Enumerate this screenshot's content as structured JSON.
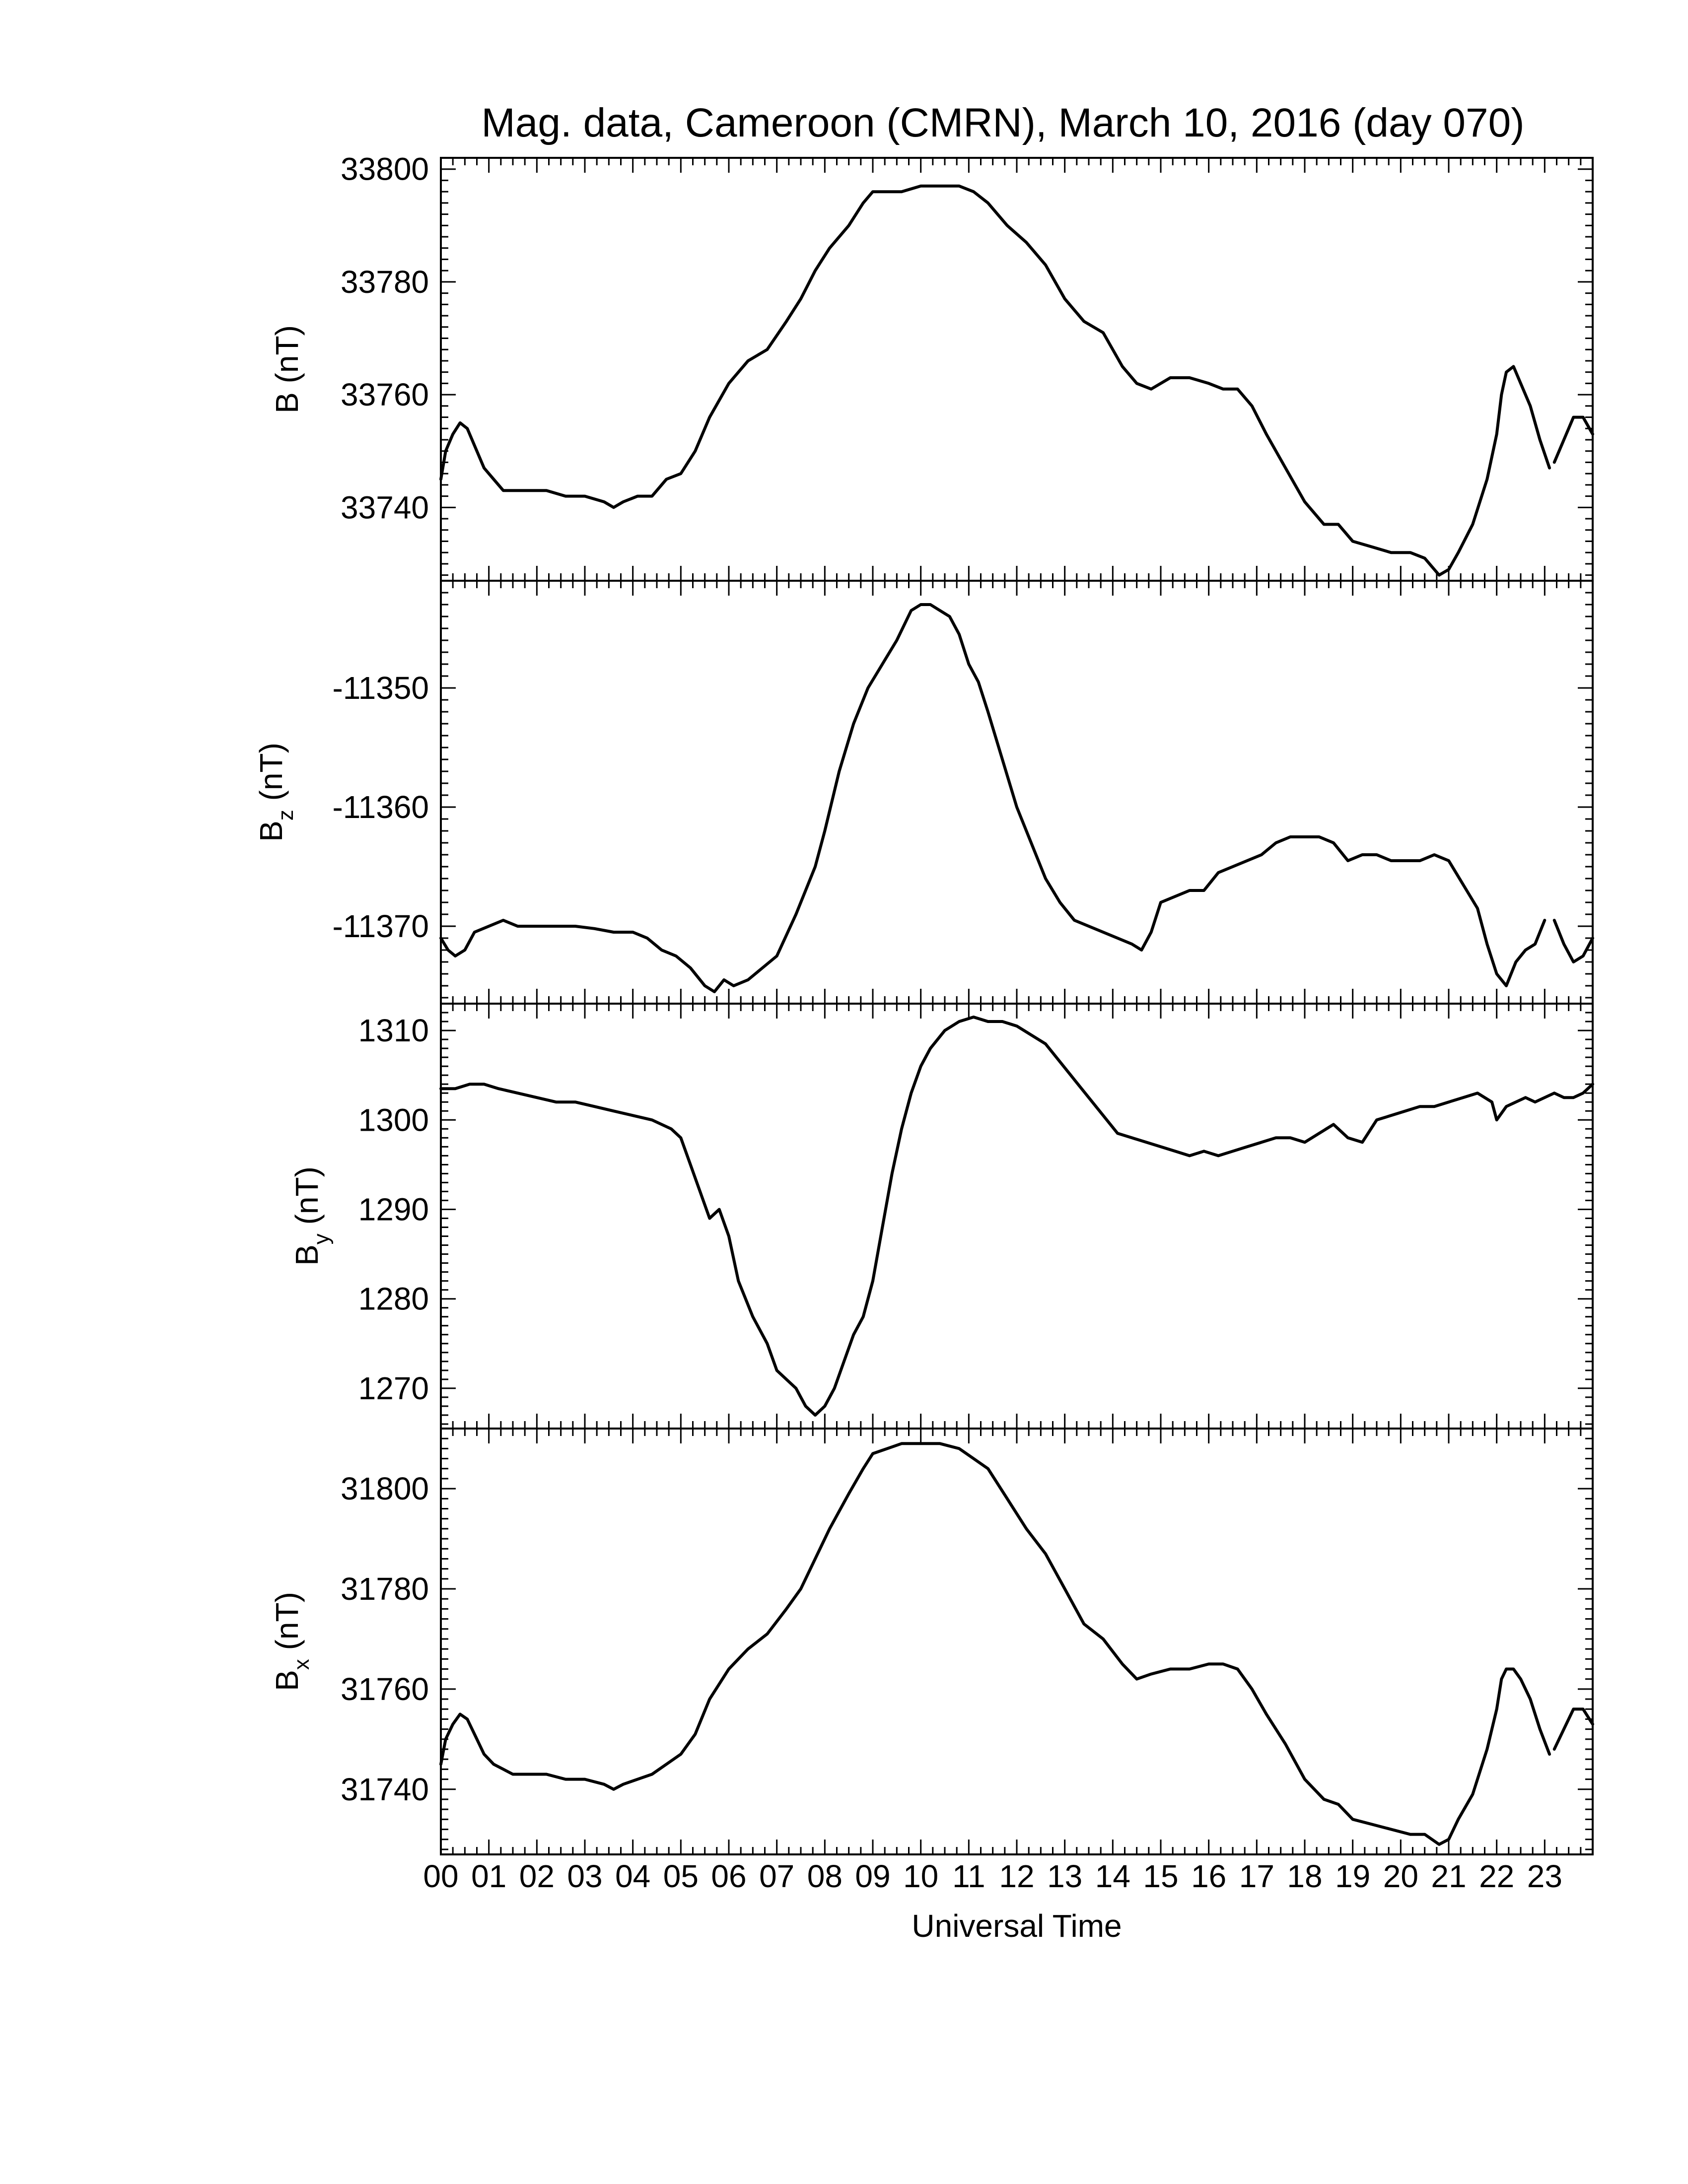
{
  "title": "Mag. data, Cameroon (CMRN), March 10, 2016 (day 070)",
  "xlabel": "Universal Time",
  "x_tick_labels": [
    "00",
    "01",
    "02",
    "03",
    "04",
    "05",
    "06",
    "07",
    "08",
    "09",
    "10",
    "11",
    "12",
    "13",
    "14",
    "15",
    "16",
    "17",
    "18",
    "19",
    "20",
    "21",
    "22",
    "23"
  ],
  "chart_data": [
    {
      "type": "line",
      "ylabel": "B (nT)",
      "ylabel_main": "B",
      "ylabel_sub": "",
      "ylabel_units": "(nT)",
      "xlim": [
        0,
        24
      ],
      "ylim": [
        33727,
        33802
      ],
      "yticks": [
        33740,
        33760,
        33780,
        33800
      ],
      "grid": false,
      "series": [
        {
          "x": [
            0.0,
            0.1,
            0.25,
            0.4,
            0.55,
            0.7,
            0.9,
            1.1,
            1.3,
            1.5,
            1.8,
            2.2,
            2.6,
            3.0,
            3.4,
            3.6,
            3.8,
            4.1,
            4.4,
            4.7,
            5.0,
            5.3,
            5.6,
            6.0,
            6.4,
            6.8,
            7.2,
            7.5,
            7.8,
            8.1,
            8.5,
            8.8,
            9.0,
            9.3,
            9.6,
            10.0,
            10.4,
            10.8,
            11.1,
            11.4,
            11.8,
            12.2,
            12.6,
            13.0,
            13.4,
            13.8,
            14.2,
            14.5,
            14.8,
            15.2,
            15.6,
            16.0,
            16.3,
            16.6,
            16.9,
            17.2,
            17.6,
            18.0,
            18.4,
            18.7,
            19.0,
            19.4,
            19.8,
            20.2,
            20.5,
            20.8,
            21.0,
            21.2,
            21.5,
            21.8,
            22.0,
            22.1,
            22.2,
            22.35,
            22.5,
            22.7,
            22.9,
            23.1
          ],
          "y": [
            33745,
            33750,
            33753,
            33755,
            33754,
            33751,
            33747,
            33745,
            33743,
            33743,
            33743,
            33743,
            33742,
            33742,
            33741,
            33740,
            33741,
            33742,
            33742,
            33745,
            33746,
            33750,
            33756,
            33762,
            33766,
            33768,
            33773,
            33777,
            33782,
            33786,
            33790,
            33794,
            33796,
            33796,
            33796,
            33797,
            33797,
            33797,
            33796,
            33794,
            33790,
            33787,
            33783,
            33777,
            33773,
            33771,
            33765,
            33762,
            33761,
            33763,
            33763,
            33762,
            33761,
            33761,
            33758,
            33753,
            33747,
            33741,
            33737,
            33737,
            33734,
            33733,
            33732,
            33732,
            33731,
            33728,
            33729,
            33732,
            33737,
            33745,
            33753,
            33760,
            33764,
            33765,
            33762,
            33758,
            33752,
            33747
          ]
        },
        {
          "x": [
            23.2,
            23.4,
            23.6,
            23.8,
            24.0
          ],
          "y": [
            33748,
            33752,
            33756,
            33756,
            33753
          ]
        }
      ]
    },
    {
      "type": "line",
      "ylabel": "Bz (nT)",
      "ylabel_main": "B",
      "ylabel_sub": "z",
      "ylabel_units": "(nT)",
      "xlim": [
        0,
        24
      ],
      "ylim": [
        -11376.5,
        -11341
      ],
      "yticks": [
        -11350,
        -11360,
        -11370
      ],
      "grid": false,
      "series": [
        {
          "x": [
            0.0,
            0.15,
            0.3,
            0.5,
            0.7,
            1.0,
            1.3,
            1.6,
            2.0,
            2.4,
            2.8,
            3.2,
            3.6,
            4.0,
            4.3,
            4.6,
            4.9,
            5.2,
            5.5,
            5.7,
            5.9,
            6.1,
            6.4,
            6.7,
            7.0,
            7.4,
            7.8,
            8.0,
            8.3,
            8.6,
            8.9,
            9.2,
            9.5,
            9.8,
            10.0,
            10.2,
            10.4,
            10.6,
            10.8,
            11.0,
            11.2,
            11.4,
            11.7,
            12.0,
            12.3,
            12.6,
            12.9,
            13.2,
            13.5,
            13.8,
            14.1,
            14.4,
            14.6,
            14.8,
            15.0,
            15.3,
            15.6,
            15.9,
            16.2,
            16.5,
            16.8,
            17.1,
            17.4,
            17.7,
            18.0,
            18.3,
            18.6,
            18.9,
            19.2,
            19.5,
            19.8,
            20.1,
            20.4,
            20.7,
            21.0,
            21.3,
            21.6,
            21.8,
            22.0,
            22.2,
            22.4,
            22.6,
            22.8,
            23.0
          ],
          "y": [
            -11371.0,
            -11372.0,
            -11372.5,
            -11372.0,
            -11370.5,
            -11370.0,
            -11369.5,
            -11370.0,
            -11370.0,
            -11370.0,
            -11370.0,
            -11370.2,
            -11370.5,
            -11370.5,
            -11371.0,
            -11372.0,
            -11372.5,
            -11373.5,
            -11375.0,
            -11375.5,
            -11374.5,
            -11375.0,
            -11374.5,
            -11373.5,
            -11372.5,
            -11369.0,
            -11365.0,
            -11362.0,
            -11357.0,
            -11353.0,
            -11350.0,
            -11348.0,
            -11346.0,
            -11343.5,
            -11343.0,
            -11343.0,
            -11343.5,
            -11344.0,
            -11345.5,
            -11348.0,
            -11349.5,
            -11352.0,
            -11356.0,
            -11360.0,
            -11363.0,
            -11366.0,
            -11368.0,
            -11369.5,
            -11370.0,
            -11370.5,
            -11371.0,
            -11371.5,
            -11372.0,
            -11370.5,
            -11368.0,
            -11367.5,
            -11367.0,
            -11367.0,
            -11365.5,
            -11365.0,
            -11364.5,
            -11364.0,
            -11363.0,
            -11362.5,
            -11362.5,
            -11362.5,
            -11363.0,
            -11364.5,
            -11364.0,
            -11364.0,
            -11364.5,
            -11364.5,
            -11364.5,
            -11364.0,
            -11364.5,
            -11366.5,
            -11368.5,
            -11371.5,
            -11374.0,
            -11375.0,
            -11373.0,
            -11372.0,
            -11371.5,
            -11369.5
          ]
        },
        {
          "x": [
            23.2,
            23.4,
            23.6,
            23.8,
            24.0
          ],
          "y": [
            -11369.5,
            -11371.5,
            -11373.0,
            -11372.5,
            -11371.0
          ]
        }
      ]
    },
    {
      "type": "line",
      "ylabel": "By (nT)",
      "ylabel_main": "B",
      "ylabel_sub": "y",
      "ylabel_units": "(nT)",
      "xlim": [
        0,
        24
      ],
      "ylim": [
        1265.5,
        1313
      ],
      "yticks": [
        1270,
        1280,
        1290,
        1300,
        1310
      ],
      "grid": false,
      "series": [
        {
          "x": [
            0.0,
            0.3,
            0.6,
            0.9,
            1.2,
            1.6,
            2.0,
            2.4,
            2.8,
            3.2,
            3.6,
            4.0,
            4.4,
            4.8,
            5.0,
            5.2,
            5.4,
            5.6,
            5.8,
            6.0,
            6.2,
            6.5,
            6.8,
            7.0,
            7.2,
            7.4,
            7.6,
            7.8,
            8.0,
            8.2,
            8.4,
            8.6,
            8.8,
            9.0,
            9.2,
            9.4,
            9.6,
            9.8,
            10.0,
            10.2,
            10.5,
            10.8,
            11.1,
            11.4,
            11.7,
            12.0,
            12.3,
            12.6,
            12.9,
            13.2,
            13.5,
            13.8,
            14.1,
            14.4,
            14.7,
            15.0,
            15.3,
            15.6,
            15.9,
            16.2,
            16.5,
            16.8,
            17.1,
            17.4,
            17.7,
            18.0,
            18.3,
            18.6,
            18.9,
            19.2,
            19.5,
            19.8,
            20.1,
            20.4,
            20.7,
            21.0,
            21.3,
            21.6,
            21.9,
            22.0,
            22.2,
            22.4,
            22.6,
            22.8,
            23.0,
            23.2,
            23.4,
            23.6,
            23.8,
            24.0
          ],
          "y": [
            1303.5,
            1303.5,
            1304.0,
            1304.0,
            1303.5,
            1303.0,
            1302.5,
            1302.0,
            1302.0,
            1301.5,
            1301.0,
            1300.5,
            1300.0,
            1299.0,
            1298.0,
            1295.0,
            1292.0,
            1289.0,
            1290.0,
            1287.0,
            1282.0,
            1278.0,
            1275.0,
            1272.0,
            1271.0,
            1270.0,
            1268.0,
            1267.0,
            1268.0,
            1270.0,
            1273.0,
            1276.0,
            1278.0,
            1282.0,
            1288.0,
            1294.0,
            1299.0,
            1303.0,
            1306.0,
            1308.0,
            1310.0,
            1311.0,
            1311.5,
            1311.0,
            1311.0,
            1310.5,
            1309.5,
            1308.5,
            1306.5,
            1304.5,
            1302.5,
            1300.5,
            1298.5,
            1298.0,
            1297.5,
            1297.0,
            1296.5,
            1296.0,
            1296.5,
            1296.0,
            1296.5,
            1297.0,
            1297.5,
            1298.0,
            1298.0,
            1297.5,
            1298.5,
            1299.5,
            1298.0,
            1297.5,
            1300.0,
            1300.5,
            1301.0,
            1301.5,
            1301.5,
            1302.0,
            1302.5,
            1303.0,
            1302.0,
            1300.0,
            1301.5,
            1302.0,
            1302.5,
            1302.0,
            1302.5,
            1303.0,
            1302.5,
            1302.5,
            1303.0,
            1304.0
          ]
        }
      ]
    },
    {
      "type": "line",
      "ylabel": "Bx (nT)",
      "ylabel_main": "B",
      "ylabel_sub": "x",
      "ylabel_units": "(nT)",
      "xlim": [
        0,
        24
      ],
      "ylim": [
        31727,
        31812
      ],
      "yticks": [
        31740,
        31760,
        31780,
        31800
      ],
      "grid": false,
      "series": [
        {
          "x": [
            0.0,
            0.1,
            0.25,
            0.4,
            0.55,
            0.7,
            0.9,
            1.1,
            1.3,
            1.5,
            1.8,
            2.2,
            2.6,
            3.0,
            3.4,
            3.6,
            3.8,
            4.1,
            4.4,
            4.7,
            5.0,
            5.3,
            5.6,
            6.0,
            6.4,
            6.8,
            7.2,
            7.5,
            7.8,
            8.1,
            8.5,
            8.8,
            9.0,
            9.3,
            9.6,
            10.0,
            10.4,
            10.8,
            11.1,
            11.4,
            11.8,
            12.2,
            12.6,
            13.0,
            13.4,
            13.8,
            14.2,
            14.5,
            14.8,
            15.2,
            15.6,
            16.0,
            16.3,
            16.6,
            16.9,
            17.2,
            17.6,
            18.0,
            18.4,
            18.7,
            19.0,
            19.4,
            19.8,
            20.2,
            20.5,
            20.8,
            21.0,
            21.2,
            21.5,
            21.8,
            22.0,
            22.1,
            22.2,
            22.35,
            22.5,
            22.7,
            22.9,
            23.1
          ],
          "y": [
            31745,
            31750,
            31753,
            31755,
            31754,
            31751,
            31747,
            31745,
            31744,
            31743,
            31743,
            31743,
            31742,
            31742,
            31741,
            31740,
            31741,
            31742,
            31743,
            31745,
            31747,
            31751,
            31758,
            31764,
            31768,
            31771,
            31776,
            31780,
            31786,
            31792,
            31799,
            31804,
            31807,
            31808,
            31809,
            31809,
            31809,
            31808,
            31806,
            31804,
            31798,
            31792,
            31787,
            31780,
            31773,
            31770,
            31765,
            31762,
            31763,
            31764,
            31764,
            31765,
            31765,
            31764,
            31760,
            31755,
            31749,
            31742,
            31738,
            31737,
            31734,
            31733,
            31732,
            31731,
            31731,
            31729,
            31730,
            31734,
            31739,
            31748,
            31756,
            31762,
            31764,
            31764,
            31762,
            31758,
            31752,
            31747
          ]
        },
        {
          "x": [
            23.2,
            23.4,
            23.6,
            23.8,
            24.0
          ],
          "y": [
            31748,
            31752,
            31756,
            31756,
            31753
          ]
        }
      ]
    }
  ]
}
